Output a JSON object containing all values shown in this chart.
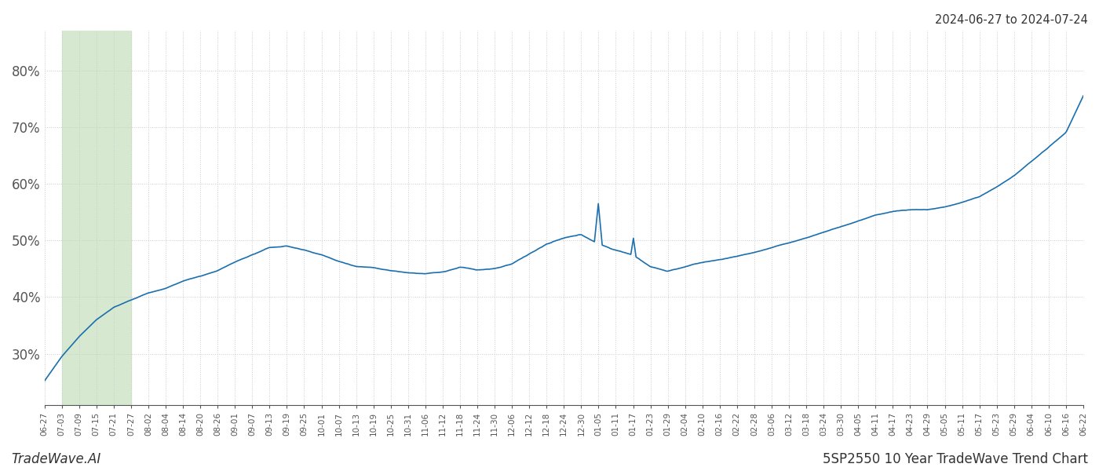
{
  "title_right": "2024-06-27 to 2024-07-24",
  "footer_left": "TradeWave.AI",
  "footer_right": "5SP2550 10 Year TradeWave Trend Chart",
  "line_color": "#1a6faf",
  "line_width": 1.2,
  "bg_color": "#ffffff",
  "grid_color": "#cccccc",
  "grid_style": "dotted",
  "highlight_color": "#d6e8d0",
  "ytick_labels": [
    "30%",
    "40%",
    "50%",
    "60%",
    "70%",
    "80%"
  ],
  "ytick_values": [
    0.3,
    0.4,
    0.5,
    0.6,
    0.7,
    0.8
  ],
  "ymin": 0.21,
  "ymax": 0.87,
  "x_labels": [
    "06-27",
    "07-03",
    "07-09",
    "07-15",
    "07-21",
    "07-27",
    "08-02",
    "08-04",
    "08-14",
    "08-20",
    "08-26",
    "09-01",
    "09-07",
    "09-13",
    "09-19",
    "09-25",
    "10-01",
    "10-07",
    "10-13",
    "10-19",
    "10-25",
    "10-31",
    "11-06",
    "11-12",
    "11-18",
    "11-24",
    "11-30",
    "12-06",
    "12-12",
    "12-18",
    "12-24",
    "12-30",
    "01-05",
    "01-11",
    "01-17",
    "01-23",
    "01-29",
    "02-04",
    "02-10",
    "02-16",
    "02-22",
    "02-28",
    "03-06",
    "03-12",
    "03-18",
    "03-24",
    "03-30",
    "04-05",
    "04-11",
    "04-17",
    "04-23",
    "04-29",
    "05-05",
    "05-11",
    "05-17",
    "05-23",
    "05-29",
    "06-04",
    "06-10",
    "06-16",
    "06-22"
  ],
  "highlight_start_label": "07-03",
  "highlight_end_label": "07-27",
  "key_values": [
    0.252,
    0.295,
    0.33,
    0.36,
    0.382,
    0.395,
    0.408,
    0.415,
    0.428,
    0.437,
    0.447,
    0.462,
    0.475,
    0.487,
    0.49,
    0.483,
    0.475,
    0.463,
    0.455,
    0.453,
    0.448,
    0.445,
    0.444,
    0.447,
    0.455,
    0.45,
    0.452,
    0.46,
    0.478,
    0.495,
    0.505,
    0.51,
    0.495,
    0.483,
    0.475,
    0.455,
    0.447,
    0.455,
    0.462,
    0.467,
    0.473,
    0.48,
    0.488,
    0.496,
    0.505,
    0.515,
    0.525,
    0.535,
    0.545,
    0.552,
    0.555,
    0.555,
    0.56,
    0.568,
    0.578,
    0.595,
    0.615,
    0.64,
    0.665,
    0.69,
    0.755
  ]
}
